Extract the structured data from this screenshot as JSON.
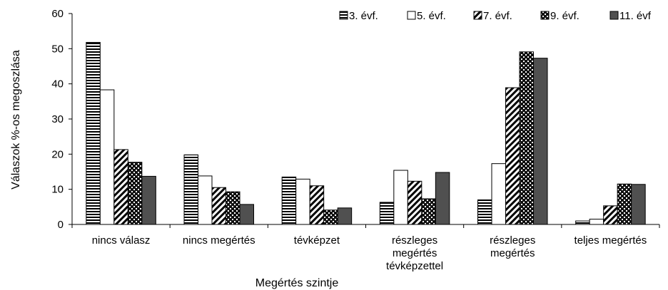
{
  "chart_data": {
    "type": "bar",
    "title": "",
    "xlabel": "Megértés szintje",
    "ylabel": "Válaszok %-os megoszlása",
    "ylim": [
      0,
      60
    ],
    "yticks": [
      0,
      10,
      20,
      30,
      40,
      50,
      60
    ],
    "grid": false,
    "legend_position": "top-right",
    "categories": [
      [
        "nincs válasz"
      ],
      [
        "nincs megértés"
      ],
      [
        "tévképzet"
      ],
      [
        "részleges",
        "megértés",
        "tévképzettel"
      ],
      [
        "részleges",
        "megértés"
      ],
      [
        "teljes megértés"
      ]
    ],
    "series": [
      {
        "name": "3. évf.",
        "pattern": "horizontal-stripes",
        "values": [
          51.8,
          19.8,
          13.5,
          6.3,
          7.0,
          1.0
        ]
      },
      {
        "name": "5. évf.",
        "pattern": "white",
        "values": [
          38.3,
          13.8,
          12.9,
          15.4,
          17.3,
          1.5
        ]
      },
      {
        "name": "7. évf.",
        "pattern": "diagonal-stripes",
        "values": [
          21.3,
          10.5,
          11.0,
          12.3,
          38.9,
          5.3
        ]
      },
      {
        "name": "9. évf.",
        "pattern": "dots",
        "values": [
          17.7,
          9.3,
          4.1,
          7.3,
          49.1,
          11.5
        ]
      },
      {
        "name": "11. évf",
        "pattern": "dark-solid",
        "values": [
          13.7,
          5.7,
          4.7,
          14.8,
          47.3,
          11.4
        ]
      }
    ]
  }
}
